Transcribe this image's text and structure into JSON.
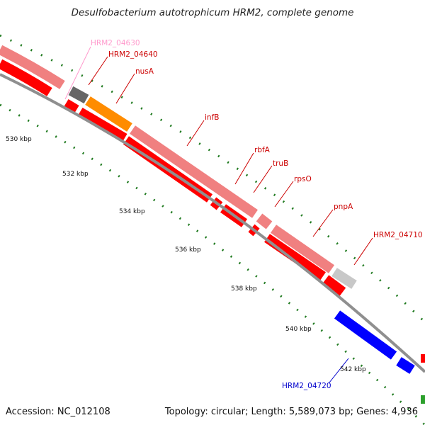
{
  "title": "Desulfobacterium autotrophicum HRM2, complete genome",
  "footer": {
    "accession": "Accession: NC_012108",
    "stats": "Topology: circular; Length: 5,589,073 bp; Genes: 4,936"
  },
  "colors": {
    "backbone": "#8f8f8f",
    "cds_track": "#ff0000",
    "gene_track": "#f08080",
    "minus_strand": "#0000ff",
    "rna": "#2ca02c",
    "tick": "#1f7a1f"
  },
  "ruler_labels": [
    "530 kbp",
    "532 kbp",
    "534 kbp",
    "536 kbp",
    "538 kbp",
    "540 kbp",
    "542 kbp"
  ],
  "gene_labels": [
    {
      "name": "HRM2_04630",
      "color": "#ff99cc"
    },
    {
      "name": "HRM2_04640",
      "color": "#cc0000"
    },
    {
      "name": "nusA",
      "color": "#cc0000"
    },
    {
      "name": "infB",
      "color": "#cc0000"
    },
    {
      "name": "rbfA",
      "color": "#cc0000"
    },
    {
      "name": "truB",
      "color": "#cc0000"
    },
    {
      "name": "rpsO",
      "color": "#cc0000"
    },
    {
      "name": "pnpA",
      "color": "#cc0000"
    },
    {
      "name": "HRM2_04710",
      "color": "#cc0000"
    },
    {
      "name": "HRM2_04720",
      "color": "#0000cc"
    }
  ]
}
